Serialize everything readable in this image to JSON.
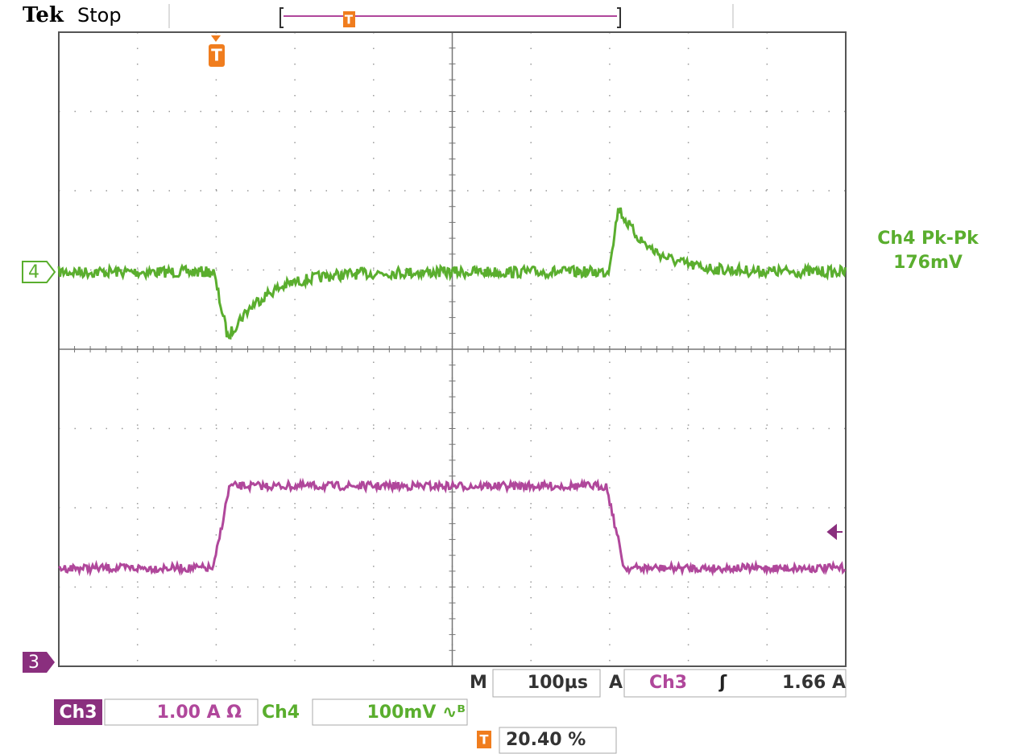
{
  "header": {
    "brand": "Tek",
    "status": "Stop",
    "trigger_marker": "T"
  },
  "readout": {
    "label": "Ch4 Pk-Pk",
    "value": "176mV"
  },
  "markers": {
    "ch4": "4",
    "ch3": "3",
    "trigger": "T",
    "position": "T"
  },
  "timebase": {
    "m": "M",
    "value": "100µs",
    "a": "A",
    "source": "Ch3",
    "slope": "ʃ",
    "level": "1.66 A"
  },
  "channels": [
    {
      "name": "Ch3",
      "scale": "1.00 A Ω"
    },
    {
      "name": "Ch4",
      "scale": "100mV ∿ᴮ"
    }
  ],
  "trigger_position": {
    "icon": "T",
    "value": "20.40 %"
  }
}
